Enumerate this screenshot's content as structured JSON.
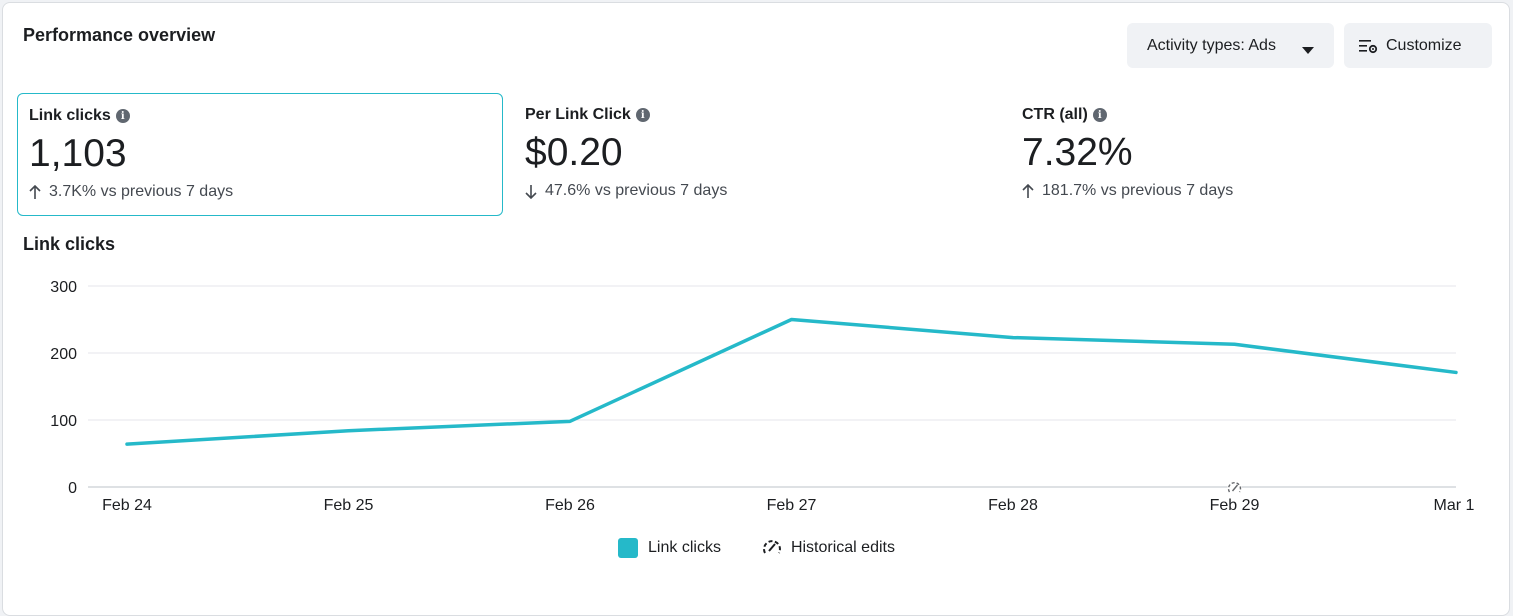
{
  "header": {
    "title": "Performance overview",
    "activity_button": "Activity types: Ads",
    "customize_button": "Customize"
  },
  "metrics": [
    {
      "label": "Link clicks",
      "value": "1,103",
      "direction": "up",
      "change": "3.7K% vs previous 7 days",
      "selected": true
    },
    {
      "label": "Per Link Click",
      "value": "$0.20",
      "direction": "down",
      "change": "47.6% vs previous 7 days",
      "selected": false
    },
    {
      "label": "CTR (all)",
      "value": "7.32%",
      "direction": "up",
      "change": "181.7% vs previous 7 days",
      "selected": false
    }
  ],
  "chart_title": "Link clicks",
  "legend": {
    "series": "Link clicks",
    "edits": "Historical edits"
  },
  "colors": {
    "accent": "#25b9c9",
    "grid": "#e4e6eb",
    "text": "#1c1e21"
  },
  "chart_data": {
    "type": "line",
    "x": [
      "Feb 24",
      "Feb 25",
      "Feb 26",
      "Feb 27",
      "Feb 28",
      "Feb 29",
      "Mar 1"
    ],
    "yticks": [
      0,
      100,
      200,
      300
    ],
    "ylim": [
      0,
      300
    ],
    "series": [
      {
        "name": "Link clicks",
        "values": [
          64,
          84,
          98,
          250,
          223,
          213,
          171
        ]
      }
    ],
    "historical_edit_markers": [
      "Feb 29"
    ],
    "grid": true,
    "legend_position": "bottom"
  }
}
